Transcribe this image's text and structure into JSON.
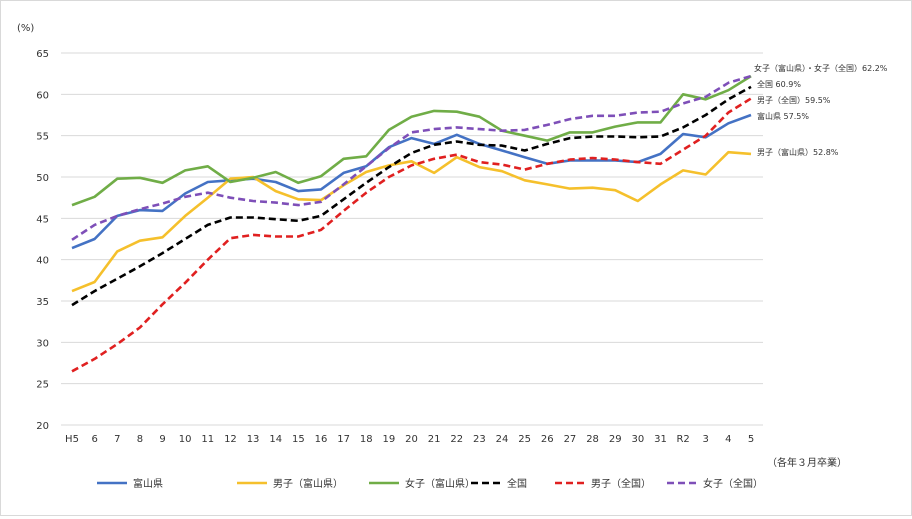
{
  "chart_data": {
    "type": "line",
    "ylabel": "(%)",
    "xlabel": "（各年３月卒業）",
    "ylim": [
      20,
      65
    ],
    "yticks": [
      20,
      25,
      30,
      35,
      40,
      45,
      50,
      55,
      60,
      65
    ],
    "categories": [
      "H5",
      "6",
      "7",
      "8",
      "9",
      "10",
      "11",
      "12",
      "13",
      "14",
      "15",
      "16",
      "17",
      "18",
      "19",
      "20",
      "21",
      "22",
      "23",
      "24",
      "25",
      "26",
      "27",
      "28",
      "29",
      "30",
      "31",
      "R2",
      "3",
      "4",
      "5"
    ],
    "series": [
      {
        "name": "富山県",
        "color": "#4472C4",
        "dash": "solid",
        "values": [
          41.4,
          42.5,
          45.3,
          46.0,
          45.9,
          48.0,
          49.4,
          49.6,
          49.8,
          49.4,
          48.3,
          48.5,
          50.5,
          51.3,
          53.6,
          54.7,
          54.0,
          55.1,
          54.0,
          53.2,
          52.4,
          51.6,
          52.0,
          52.0,
          52.0,
          51.8,
          52.8,
          55.2,
          54.8,
          56.5,
          57.5
        ]
      },
      {
        "name": "男子（富山県）",
        "color": "#F5C02C",
        "dash": "solid",
        "values": [
          36.2,
          37.3,
          41.0,
          42.3,
          42.7,
          45.3,
          47.5,
          49.8,
          50.0,
          48.3,
          47.3,
          47.2,
          49.0,
          50.6,
          51.4,
          51.9,
          50.5,
          52.4,
          51.2,
          50.7,
          49.6,
          49.1,
          48.6,
          48.7,
          48.4,
          47.1,
          49.1,
          50.8,
          50.3,
          53.0,
          52.8
        ]
      },
      {
        "name": "女子（富山県）",
        "color": "#70AD47",
        "dash": "solid",
        "values": [
          46.6,
          47.6,
          49.8,
          49.9,
          49.3,
          50.8,
          51.3,
          49.4,
          49.9,
          50.6,
          49.3,
          50.1,
          52.2,
          52.5,
          55.7,
          57.3,
          58.0,
          57.9,
          57.3,
          55.6,
          55.0,
          54.4,
          55.4,
          55.4,
          56.1,
          56.6,
          56.6,
          60.0,
          59.4,
          60.5,
          62.2
        ]
      },
      {
        "name": "全国",
        "color": "#000000",
        "dash": "dashed",
        "values": [
          34.5,
          36.2,
          37.7,
          39.2,
          40.8,
          42.5,
          44.2,
          45.1,
          45.1,
          44.9,
          44.7,
          45.3,
          47.3,
          49.3,
          51.2,
          52.9,
          53.9,
          54.3,
          53.9,
          53.8,
          53.2,
          54.0,
          54.7,
          54.9,
          54.9,
          54.8,
          54.9,
          56.0,
          57.5,
          59.4,
          60.9
        ]
      },
      {
        "name": "男子（全国）",
        "color": "#E02020",
        "dash": "dashed",
        "values": [
          26.5,
          28.0,
          29.8,
          31.8,
          34.6,
          37.2,
          40.0,
          42.6,
          43.0,
          42.8,
          42.8,
          43.6,
          45.9,
          48.1,
          50.0,
          51.4,
          52.2,
          52.7,
          51.8,
          51.5,
          50.9,
          51.6,
          52.1,
          52.3,
          52.1,
          51.8,
          51.6,
          53.3,
          55.0,
          57.8,
          59.5
        ]
      },
      {
        "name": "女子（全国）",
        "color": "#7E4FB8",
        "dash": "dashed",
        "values": [
          42.4,
          44.2,
          45.3,
          46.1,
          46.8,
          47.6,
          48.1,
          47.5,
          47.1,
          46.9,
          46.6,
          47.0,
          49.1,
          51.3,
          53.5,
          55.4,
          55.8,
          56.0,
          55.8,
          55.6,
          55.7,
          56.3,
          57.0,
          57.4,
          57.4,
          57.8,
          57.9,
          58.9,
          59.7,
          61.4,
          62.2
        ]
      }
    ],
    "end_labels": [
      {
        "text": "女子（富山県）・女子（全国）62.2%",
        "value": 62.2
      },
      {
        "text": "全国  60.9%",
        "value": 60.9
      },
      {
        "text": "男子（全国）59.5%",
        "value": 59.5
      },
      {
        "text": "富山県  57.5%",
        "value": 57.5
      },
      {
        "text": "男子（富山県）52.8%",
        "value": 52.8
      }
    ],
    "legend_position": "bottom"
  }
}
